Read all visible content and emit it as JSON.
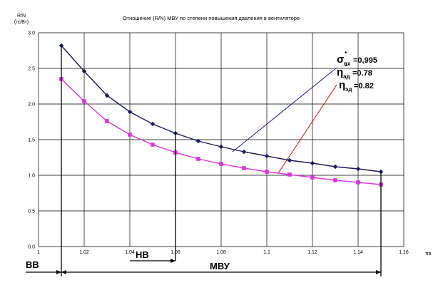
{
  "chart_data": {
    "type": "line",
    "title": "Отношение (R/N) МВУ по степени повышения давления в вентиляторе",
    "ylabel_line1": "R/N",
    "ylabel_line2": "(гс/Вт)",
    "xlabel": "πв",
    "xlim": [
      1.0,
      1.16
    ],
    "ylim": [
      0.0,
      3.0
    ],
    "x_ticks": [
      "1",
      "1.02",
      "1.04",
      "1.06",
      "1.08",
      "1.1",
      "1.12",
      "1.14",
      "1.16"
    ],
    "y_ticks": [
      "0.0",
      "0.5",
      "1.0",
      "1.5",
      "2.0",
      "2.5",
      "3.0"
    ],
    "grid": true,
    "series": [
      {
        "name": "σвх=0,995; ηад=0.78",
        "color": "#1a1a5e",
        "marker": "diamond",
        "x": [
          1.01,
          1.02,
          1.03,
          1.04,
          1.05,
          1.06,
          1.07,
          1.08,
          1.09,
          1.1,
          1.11,
          1.12,
          1.13,
          1.14,
          1.15
        ],
        "values": [
          2.82,
          2.46,
          2.12,
          1.89,
          1.72,
          1.59,
          1.48,
          1.4,
          1.33,
          1.27,
          1.21,
          1.17,
          1.12,
          1.09,
          1.05
        ]
      },
      {
        "name": "σвх=0,995; ηэд=0.82",
        "color": "#dd33dd",
        "marker": "square",
        "x": [
          1.01,
          1.02,
          1.03,
          1.04,
          1.05,
          1.06,
          1.07,
          1.08,
          1.09,
          1.1,
          1.11,
          1.12,
          1.13,
          1.14,
          1.15
        ],
        "values": [
          2.35,
          2.04,
          1.76,
          1.57,
          1.43,
          1.32,
          1.23,
          1.16,
          1.1,
          1.05,
          1.01,
          0.97,
          0.93,
          0.9,
          0.87
        ]
      }
    ],
    "annotations": {
      "sigma": {
        "symbol": "σ",
        "sub": "вх",
        "sup": "*",
        "value": "=0,995"
      },
      "eta_ad": {
        "symbol": "η",
        "sub": "ад",
        "sup": "*",
        "value": "=0.78"
      },
      "eta_ed": {
        "symbol": "η",
        "sub": "эд",
        "value": "=0.82"
      }
    },
    "regions": {
      "bb": {
        "label": "BB"
      },
      "hb": {
        "label": "HB"
      },
      "mvu": {
        "label": "МВУ"
      }
    }
  }
}
